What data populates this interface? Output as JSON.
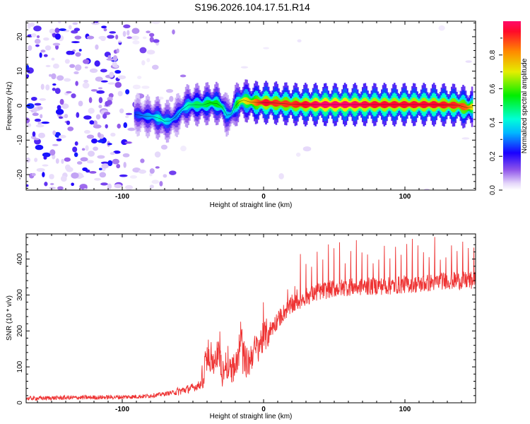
{
  "title": "S196.2026.104.17.51.R14",
  "chart_data": [
    {
      "type": "heatmap",
      "xlabel": "Height of straight line (km)",
      "ylabel": "Frequency (Hz)",
      "xlim": [
        -168,
        150
      ],
      "ylim": [
        -24.5,
        24.5
      ],
      "x_ticks": [
        "-100",
        "0",
        "100"
      ],
      "y_ticks": [
        "20",
        "10",
        "0",
        "-10",
        "-20"
      ],
      "colorbar": {
        "label": "Normalized spectral amplitude",
        "range": [
          0,
          1
        ],
        "ticks": [
          "0.0",
          "0.2",
          "0.4",
          "0.6",
          "0.8"
        ]
      },
      "ridge": {
        "x": [
          -91,
          -85,
          -78,
          -73,
          -70,
          -66,
          -62,
          -58,
          -53,
          -48,
          -43,
          -38,
          -33,
          -29,
          -26,
          -23,
          -20,
          -17,
          -14,
          -10,
          -5,
          0,
          10,
          20,
          30,
          40,
          60,
          80,
          100,
          120,
          138,
          144,
          148
        ],
        "y": [
          -2.5,
          -3,
          -3.2,
          -3.8,
          -4.6,
          -4.4,
          -3.2,
          -1.2,
          0.2,
          0.3,
          0.2,
          0.8,
          0.6,
          -0.5,
          -2.8,
          -2.5,
          0,
          1.2,
          1.6,
          1.1,
          0.9,
          0.9,
          0.7,
          0.4,
          0.3,
          0.3,
          0.3,
          0.3,
          0.3,
          0.3,
          0.1,
          -0.6,
          -0.3
        ],
        "amplitude": [
          0.25,
          0.3,
          0.35,
          0.45,
          0.4,
          0.35,
          0.3,
          0.35,
          0.45,
          0.5,
          0.5,
          0.55,
          0.55,
          0.5,
          0.35,
          0.35,
          0.5,
          0.65,
          0.7,
          0.75,
          0.85,
          0.95,
          0.9,
          0.9,
          0.95,
          1.0,
          1.0,
          0.95,
          0.95,
          0.95,
          0.9,
          0.85,
          0.7
        ]
      }
    },
    {
      "type": "line",
      "xlabel": "Height of straight line (km)",
      "ylabel": "SNR (10 * v/v)",
      "xlim": [
        -168,
        150
      ],
      "ylim": [
        0,
        470
      ],
      "x_ticks": [
        "-100",
        "0",
        "100"
      ],
      "y_ticks": [
        "0",
        "100",
        "200",
        "300",
        "400"
      ],
      "series": [
        {
          "name": "SNR",
          "color": "#ee3333",
          "x": [
            -168,
            -140,
            -120,
            -100,
            -85,
            -75,
            -68,
            -60,
            -55,
            -50,
            -45,
            -42,
            -41,
            -40,
            -38,
            -35,
            -32,
            -30,
            -28,
            -25,
            -22,
            -20,
            -18,
            -16,
            -14,
            -12,
            -10,
            -8,
            -5,
            -2,
            0,
            5,
            10,
            15,
            20,
            25,
            30,
            40,
            50,
            60,
            70,
            80,
            90,
            100,
            110,
            120,
            130,
            140,
            150
          ],
          "y": [
            12,
            14,
            15,
            16,
            18,
            22,
            26,
            32,
            37,
            42,
            50,
            75,
            120,
            150,
            110,
            120,
            135,
            105,
            95,
            115,
            100,
            90,
            120,
            200,
            130,
            110,
            115,
            140,
            150,
            170,
            180,
            205,
            230,
            255,
            270,
            285,
            295,
            310,
            318,
            322,
            323,
            325,
            325,
            330,
            330,
            335,
            340,
            340,
            340
          ]
        }
      ]
    }
  ]
}
